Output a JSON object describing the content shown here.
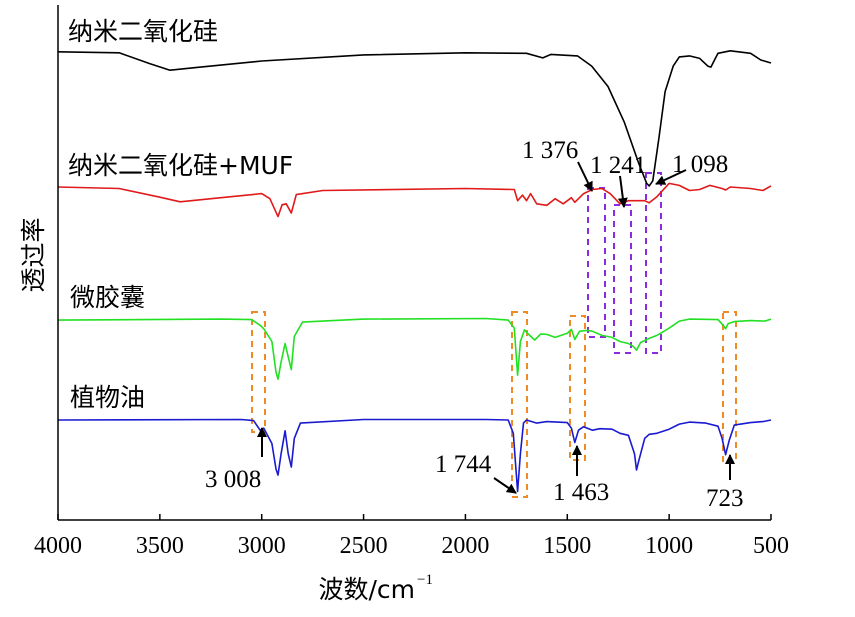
{
  "chart_data": {
    "type": "line",
    "title": "",
    "xlabel": "波数/cm",
    "xlabel_sup": "−1",
    "ylabel": "透过率",
    "xlim": [
      4000,
      500
    ],
    "ylim": [
      0,
      100
    ],
    "x_reversed": true,
    "xticks": [
      4000,
      3500,
      3000,
      2500,
      2000,
      1500,
      1000,
      500
    ],
    "xtick_labels": [
      "4000",
      "3500",
      "3000",
      "2500",
      "2000",
      "1500",
      "1000",
      "500"
    ],
    "grid": false,
    "series": [
      {
        "name": "纳米二氧化硅",
        "color": "#000000",
        "points": [
          [
            4000,
            91.8
          ],
          [
            3700,
            91.6
          ],
          [
            3550,
            89.5
          ],
          [
            3450,
            88.2
          ],
          [
            3300,
            88.8
          ],
          [
            3000,
            90
          ],
          [
            2500,
            91.2
          ],
          [
            2000,
            91.6
          ],
          [
            1700,
            91.5
          ],
          [
            1620,
            90.6
          ],
          [
            1580,
            91.3
          ],
          [
            1450,
            91
          ],
          [
            1380,
            89
          ],
          [
            1300,
            85
          ],
          [
            1220,
            78
          ],
          [
            1150,
            70
          ],
          [
            1110,
            66
          ],
          [
            1098,
            65.5
          ],
          [
            1080,
            66.5
          ],
          [
            1050,
            75
          ],
          [
            1020,
            84
          ],
          [
            980,
            89
          ],
          [
            950,
            90.8
          ],
          [
            900,
            91
          ],
          [
            850,
            90.5
          ],
          [
            810,
            89
          ],
          [
            795,
            88.8
          ],
          [
            780,
            90
          ],
          [
            760,
            91.5
          ],
          [
            700,
            92
          ],
          [
            600,
            91.5
          ],
          [
            550,
            90.2
          ],
          [
            500,
            89.6
          ]
        ]
      },
      {
        "name": "纳米二氧化硅+MUF",
        "color": "#e01a1a",
        "points": [
          [
            4000,
            65.3
          ],
          [
            3700,
            65
          ],
          [
            3500,
            63.3
          ],
          [
            3400,
            62.4
          ],
          [
            3200,
            63.2
          ],
          [
            3000,
            64
          ],
          [
            2960,
            63
          ],
          [
            2920,
            59.5
          ],
          [
            2900,
            61.8
          ],
          [
            2880,
            62
          ],
          [
            2855,
            60.2
          ],
          [
            2830,
            63.8
          ],
          [
            2700,
            64.6
          ],
          [
            2000,
            65
          ],
          [
            1760,
            64.8
          ],
          [
            1744,
            62.6
          ],
          [
            1720,
            63.7
          ],
          [
            1700,
            62.6
          ],
          [
            1680,
            64
          ],
          [
            1650,
            62
          ],
          [
            1600,
            61.7
          ],
          [
            1560,
            63
          ],
          [
            1520,
            62
          ],
          [
            1480,
            63.2
          ],
          [
            1463,
            62.3
          ],
          [
            1420,
            64
          ],
          [
            1376,
            64.8
          ],
          [
            1330,
            65
          ],
          [
            1290,
            64
          ],
          [
            1241,
            62
          ],
          [
            1200,
            62.6
          ],
          [
            1150,
            62.6
          ],
          [
            1120,
            62.6
          ],
          [
            1098,
            62.2
          ],
          [
            1060,
            63.4
          ],
          [
            1000,
            66
          ],
          [
            950,
            65.6
          ],
          [
            900,
            64.6
          ],
          [
            850,
            64.8
          ],
          [
            800,
            65.6
          ],
          [
            740,
            65
          ],
          [
            723,
            64.7
          ],
          [
            700,
            65.3
          ],
          [
            600,
            65
          ],
          [
            540,
            64.6
          ],
          [
            500,
            65.5
          ]
        ]
      },
      {
        "name": "微胶囊",
        "color": "#22e022",
        "points": [
          [
            4000,
            39.2
          ],
          [
            3200,
            39.4
          ],
          [
            3050,
            39.3
          ],
          [
            3008,
            38.2
          ],
          [
            2990,
            37.5
          ],
          [
            2950,
            35
          ],
          [
            2930,
            29
          ],
          [
            2920,
            27.6
          ],
          [
            2905,
            31
          ],
          [
            2885,
            34.6
          ],
          [
            2870,
            32
          ],
          [
            2855,
            29.5
          ],
          [
            2840,
            36
          ],
          [
            2800,
            38.8
          ],
          [
            2500,
            39.4
          ],
          [
            1900,
            39.5
          ],
          [
            1790,
            39.2
          ],
          [
            1760,
            37.6
          ],
          [
            1744,
            28.4
          ],
          [
            1730,
            35
          ],
          [
            1710,
            37.3
          ],
          [
            1690,
            36.4
          ],
          [
            1660,
            35.3
          ],
          [
            1630,
            36.5
          ],
          [
            1600,
            36.4
          ],
          [
            1560,
            35.8
          ],
          [
            1500,
            36.6
          ],
          [
            1480,
            37.4
          ],
          [
            1463,
            35.4
          ],
          [
            1440,
            37
          ],
          [
            1400,
            37.2
          ],
          [
            1376,
            37
          ],
          [
            1330,
            36.2
          ],
          [
            1280,
            35.8
          ],
          [
            1241,
            35
          ],
          [
            1200,
            34.6
          ],
          [
            1175,
            34
          ],
          [
            1160,
            33.3
          ],
          [
            1140,
            34.8
          ],
          [
            1098,
            35.6
          ],
          [
            1060,
            36.2
          ],
          [
            1000,
            37.6
          ],
          [
            950,
            39
          ],
          [
            900,
            39.4
          ],
          [
            760,
            39.3
          ],
          [
            735,
            38.2
          ],
          [
            723,
            37.5
          ],
          [
            710,
            38.5
          ],
          [
            680,
            38.9
          ],
          [
            600,
            39.1
          ],
          [
            530,
            39
          ],
          [
            500,
            39.4
          ]
        ]
      },
      {
        "name": "植物油",
        "color": "#1a1ad0",
        "points": [
          [
            4000,
            19.6
          ],
          [
            3100,
            19.7
          ],
          [
            3040,
            19.5
          ],
          [
            3008,
            17.6
          ],
          [
            2990,
            18
          ],
          [
            2950,
            15
          ],
          [
            2930,
            10
          ],
          [
            2920,
            8.8
          ],
          [
            2905,
            13
          ],
          [
            2885,
            17.5
          ],
          [
            2870,
            13
          ],
          [
            2855,
            10.4
          ],
          [
            2840,
            16
          ],
          [
            2810,
            19
          ],
          [
            2500,
            19.7
          ],
          [
            1900,
            19.7
          ],
          [
            1790,
            19.6
          ],
          [
            1765,
            17
          ],
          [
            1744,
            5.6
          ],
          [
            1730,
            13
          ],
          [
            1715,
            19
          ],
          [
            1700,
            19.6
          ],
          [
            1650,
            19
          ],
          [
            1600,
            19.3
          ],
          [
            1500,
            19.1
          ],
          [
            1480,
            18
          ],
          [
            1463,
            15.2
          ],
          [
            1445,
            17.6
          ],
          [
            1420,
            18.3
          ],
          [
            1376,
            17.6
          ],
          [
            1340,
            17.9
          ],
          [
            1280,
            17.8
          ],
          [
            1241,
            17
          ],
          [
            1200,
            16.6
          ],
          [
            1170,
            13
          ],
          [
            1160,
            9.8
          ],
          [
            1150,
            11.5
          ],
          [
            1120,
            16
          ],
          [
            1098,
            16.8
          ],
          [
            1060,
            17
          ],
          [
            1000,
            17.8
          ],
          [
            950,
            18.8
          ],
          [
            900,
            19.2
          ],
          [
            820,
            19
          ],
          [
            760,
            18.4
          ],
          [
            740,
            16
          ],
          [
            723,
            12.8
          ],
          [
            705,
            15.6
          ],
          [
            680,
            18.6
          ],
          [
            600,
            19.1
          ],
          [
            540,
            19.3
          ],
          [
            500,
            19.6
          ]
        ]
      }
    ],
    "annotations": [
      {
        "label": "3 008",
        "x": 3008,
        "color": "#f08a24"
      },
      {
        "label": "1 744",
        "x": 1744,
        "color": "#f08a24"
      },
      {
        "label": "1 463",
        "x": 1463,
        "color": "#f08a24"
      },
      {
        "label": "723",
        "x": 723,
        "color": "#f08a24"
      },
      {
        "label": "1 376",
        "x": 1376,
        "color": "#8a2be2"
      },
      {
        "label": "1 241",
        "x": 1241,
        "color": "#8a2be2"
      },
      {
        "label": "1 098",
        "x": 1098,
        "color": "#8a2be2"
      }
    ]
  }
}
